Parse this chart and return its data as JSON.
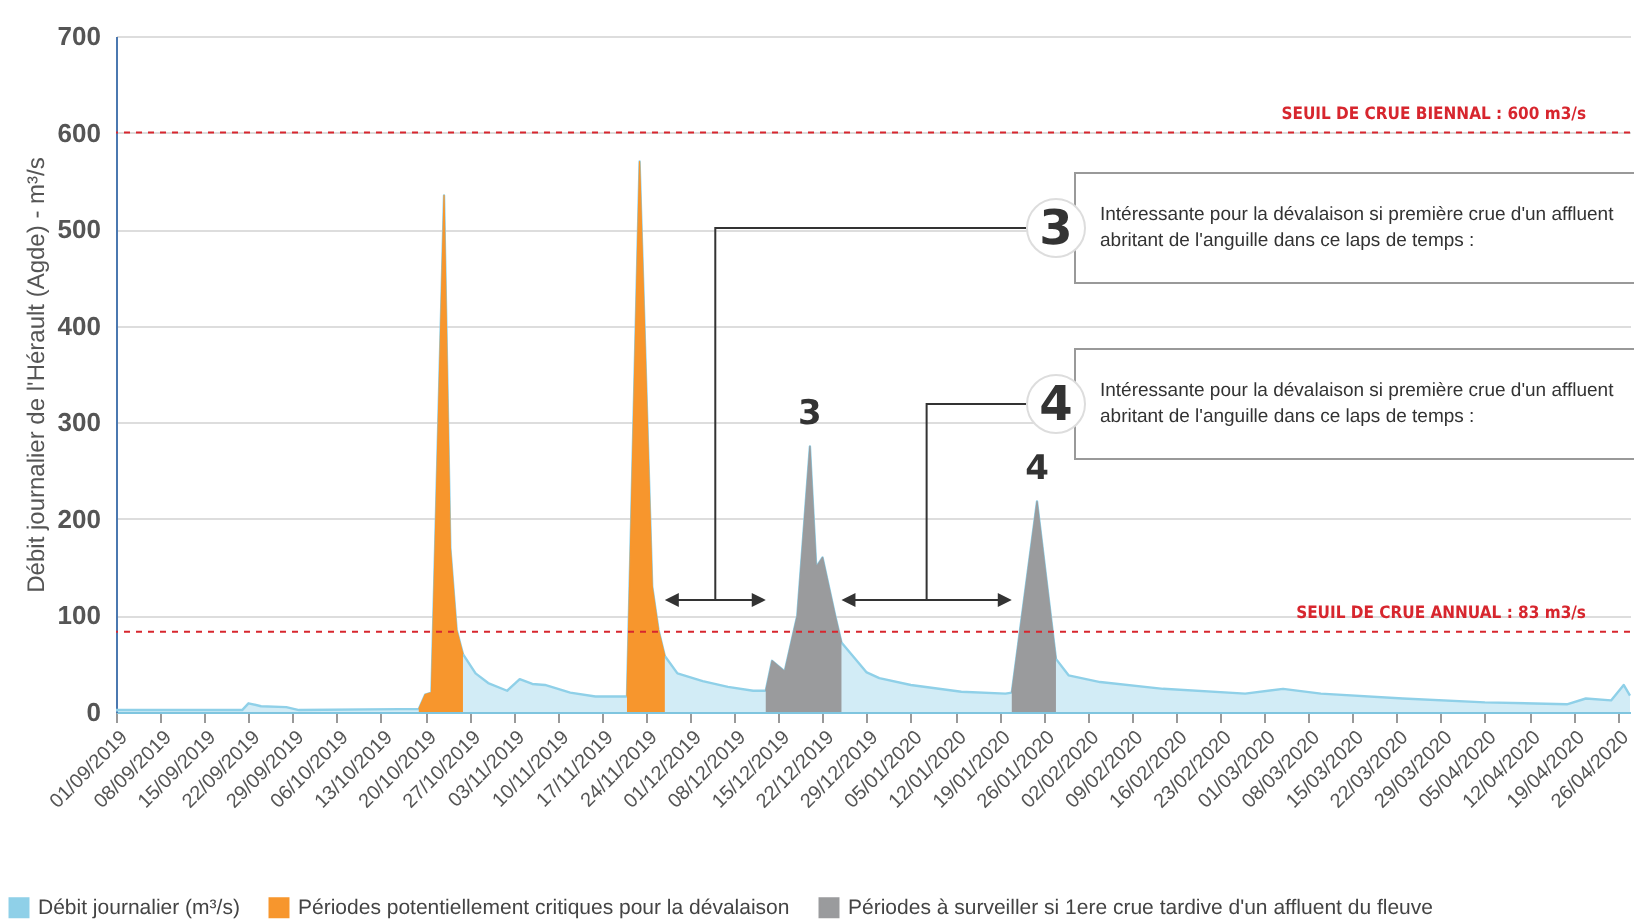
{
  "chart_data": {
    "type": "area",
    "ylabel": "Débit journalier de l'Hérault (Agde) - m³/s",
    "xlim": [
      "2019-09-01",
      "2020-04-28"
    ],
    "xticks": [
      {
        "value": "2019-09-01",
        "label": "01/09/2019"
      },
      {
        "value": "2019-09-08",
        "label": "08/09/2019"
      },
      {
        "value": "2019-09-15",
        "label": "15/09/2019"
      },
      {
        "value": "2019-09-22",
        "label": "22/09/2019"
      },
      {
        "value": "2019-09-29",
        "label": "29/09/2019"
      },
      {
        "value": "2019-10-06",
        "label": "06/10/2019"
      },
      {
        "value": "2019-10-13",
        "label": "13/10/2019"
      },
      {
        "value": "2019-10-20",
        "label": "20/10/2019"
      },
      {
        "value": "2019-10-27",
        "label": "27/10/2019"
      },
      {
        "value": "2019-11-03",
        "label": "03/11/2019"
      },
      {
        "value": "2019-11-10",
        "label": "10/11/2019"
      },
      {
        "value": "2019-11-17",
        "label": "17/11/2019"
      },
      {
        "value": "2019-11-24",
        "label": "24/11/2019"
      },
      {
        "value": "2019-12-01",
        "label": "01/12/2019"
      },
      {
        "value": "2019-12-08",
        "label": "08/12/2019"
      },
      {
        "value": "2019-12-15",
        "label": "15/12/2019"
      },
      {
        "value": "2019-12-22",
        "label": "22/12/2019"
      },
      {
        "value": "2019-12-29",
        "label": "29/12/2019"
      },
      {
        "value": "2020-01-05",
        "label": "05/01/2020"
      },
      {
        "value": "2020-01-12",
        "label": "12/01/2020"
      },
      {
        "value": "2020-01-19",
        "label": "19/01/2020"
      },
      {
        "value": "2020-01-26",
        "label": "26/01/2020"
      },
      {
        "value": "2020-02-02",
        "label": "02/02/2020"
      },
      {
        "value": "2020-02-09",
        "label": "09/02/2020"
      },
      {
        "value": "2020-02-16",
        "label": "16/02/2020"
      },
      {
        "value": "2020-02-23",
        "label": "23/02/2020"
      },
      {
        "value": "2020-03-01",
        "label": "01/03/2020"
      },
      {
        "value": "2020-03-08",
        "label": "08/03/2020"
      },
      {
        "value": "2020-03-15",
        "label": "15/03/2020"
      },
      {
        "value": "2020-03-22",
        "label": "22/03/2020"
      },
      {
        "value": "2020-03-29",
        "label": "29/03/2020"
      },
      {
        "value": "2020-04-05",
        "label": "05/04/2020"
      },
      {
        "value": "2020-04-12",
        "label": "12/04/2020"
      },
      {
        "value": "2020-04-19",
        "label": "19/04/2020"
      },
      {
        "value": "2020-04-26",
        "label": "26/04/2020"
      }
    ],
    "ylim": [
      0,
      700
    ],
    "yticks": [
      0,
      100,
      200,
      300,
      400,
      500,
      600,
      700
    ],
    "grid": "y",
    "legend": "bottom",
    "marker": "none",
    "series": [
      {
        "name": "Débit journalier (m³/s)",
        "color": "#8fd0e8",
        "x": [
          "2019-09-01",
          "2019-09-21",
          "2019-09-22",
          "2019-09-24",
          "2019-09-28",
          "2019-09-30",
          "2019-10-16",
          "2019-10-19",
          "2019-10-20",
          "2019-10-21",
          "2019-10-23",
          "2019-10-24",
          "2019-10-25",
          "2019-10-26",
          "2019-10-28",
          "2019-10-30",
          "2019-11-02",
          "2019-11-04",
          "2019-11-06",
          "2019-11-08",
          "2019-11-12",
          "2019-11-16",
          "2019-11-21",
          "2019-11-23",
          "2019-11-25",
          "2019-11-26",
          "2019-11-27",
          "2019-11-29",
          "2019-12-03",
          "2019-12-07",
          "2019-12-11",
          "2019-12-13",
          "2019-12-14",
          "2019-12-16",
          "2019-12-18",
          "2019-12-20",
          "2019-12-21",
          "2019-12-22",
          "2019-12-24",
          "2019-12-25",
          "2019-12-29",
          "2019-12-31",
          "2020-01-05",
          "2020-01-13",
          "2020-01-20",
          "2020-01-21",
          "2020-01-25",
          "2020-01-28",
          "2020-01-30",
          "2020-02-04",
          "2020-02-14",
          "2020-02-27",
          "2020-03-04",
          "2020-03-10",
          "2020-03-23",
          "2020-04-05",
          "2020-04-18",
          "2020-04-21",
          "2020-04-25",
          "2020-04-27",
          "2020-04-28"
        ],
        "values": [
          2,
          2,
          9,
          6,
          5,
          2,
          3,
          3,
          18,
          20,
          535,
          170,
          85,
          60,
          40,
          30,
          22,
          34,
          29,
          28,
          20,
          16,
          16,
          570,
          130,
          85,
          58,
          40,
          32,
          26,
          22,
          22,
          53,
          42,
          100,
          275,
          150,
          160,
          100,
          72,
          41,
          35,
          28,
          21,
          19,
          20,
          218,
          55,
          38,
          31,
          24,
          19,
          24,
          19,
          14,
          10,
          8,
          14,
          12,
          28,
          17
        ]
      },
      {
        "name": "Périodes potentiellement critiques pour la dévalaison",
        "color": "#f7962d",
        "x": [
          "2019-10-19",
          "2019-10-20",
          "2019-10-21",
          "2019-10-23",
          "2019-10-24",
          "2019-10-25",
          "2019-10-26",
          "2019-11-10",
          "2019-11-21",
          "2019-11-23",
          "2019-11-25",
          "2019-11-26",
          "2019-11-27"
        ],
        "values": [
          3,
          18,
          20,
          535,
          170,
          85,
          60,
          null,
          16,
          570,
          130,
          85,
          58
        ]
      },
      {
        "name": "Périodes à surveiller si 1ere crue tardive d'un affluent du fleuve",
        "color": "#9a9b9d",
        "x": [
          "2019-12-13",
          "2019-12-14",
          "2019-12-16",
          "2019-12-18",
          "2019-12-20",
          "2019-12-21",
          "2019-12-22",
          "2019-12-24",
          "2019-12-25",
          "2020-01-10",
          "2020-01-21",
          "2020-01-25",
          "2020-01-28"
        ],
        "values": [
          22,
          53,
          42,
          100,
          275,
          150,
          160,
          100,
          72,
          null,
          20,
          218,
          55
        ]
      }
    ],
    "ref_lines": [
      {
        "axis": "y",
        "value": 600,
        "label": "SEUIL DE CRUE BIENNAL : 600 m3/s",
        "color": "#d7262e",
        "line_style": "dashed"
      },
      {
        "axis": "y",
        "value": 83,
        "label": "SEUIL DE CRUE ANNUAL : 83 m3/s",
        "color": "#d7262e",
        "line_style": "dashed"
      }
    ],
    "annotations": [
      {
        "text": "3",
        "x": "2019-12-20",
        "y": 275
      },
      {
        "text": "4",
        "x": "2020-01-25",
        "y": 218
      },
      "3",
      "Intéressante pour la dévalaison si première crue d'un affluent abritant de l'anguille dans ce laps de temps :",
      "4",
      "Intéressante pour la dévalaison si première crue d'un affluent abritant de l'anguille dans ce laps de temps :"
    ]
  }
}
